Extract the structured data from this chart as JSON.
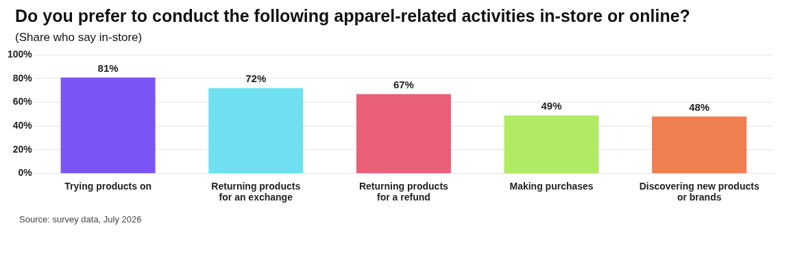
{
  "chart_data": {
    "type": "bar",
    "title": "Do you prefer to conduct the following apparel-related activities in-store or online?",
    "subtitle": "(Share who say in-store)",
    "categories": [
      "Trying products on",
      "Returning products\nfor an exchange",
      "Returning products\nfor a refund",
      "Making purchases",
      "Discovering new products\nor brands"
    ],
    "values": [
      81,
      72,
      67,
      49,
      48
    ],
    "colors": [
      "#7b55f5",
      "#6ee0f0",
      "#e95f78",
      "#b1ea63",
      "#ef7e50"
    ],
    "ylim": [
      0,
      100
    ],
    "yticks": [
      {
        "value": 0,
        "label": "0%"
      },
      {
        "value": 20,
        "label": "20%"
      },
      {
        "value": 40,
        "label": "40%"
      },
      {
        "value": 60,
        "label": "60%"
      },
      {
        "value": 80,
        "label": "80%"
      },
      {
        "value": 100,
        "label": "100%"
      }
    ],
    "value_labels": [
      "81%",
      "72%",
      "67%",
      "49%",
      "48%"
    ],
    "grid": "y",
    "annotations": [
      "Source: survey data, July 2026"
    ]
  }
}
